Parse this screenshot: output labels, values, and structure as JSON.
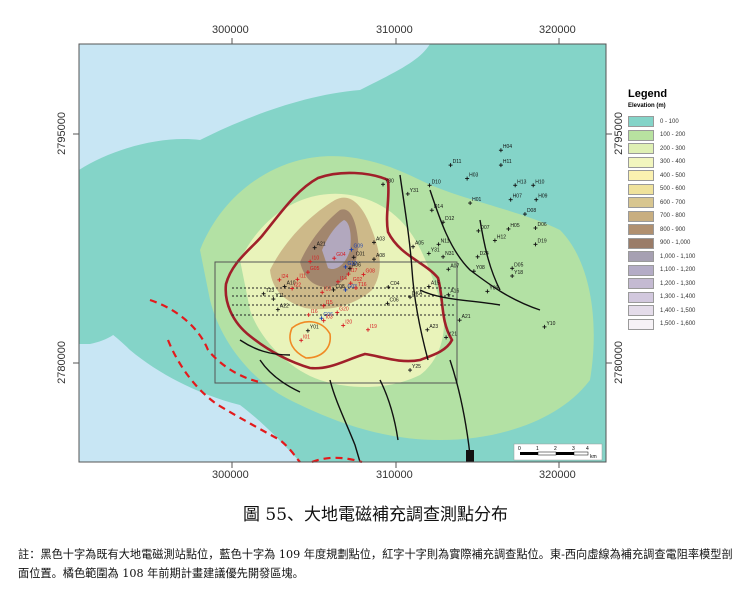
{
  "map": {
    "top_ticks": [
      "300000",
      "310000",
      "320000"
    ],
    "bottom_ticks": [
      "300000",
      "310000",
      "320000"
    ],
    "left_ticks": [
      "2795000",
      "2780000"
    ],
    "right_ticks": [
      "2795000",
      "2780000"
    ],
    "scale_bar": {
      "labels": [
        "0",
        "1",
        "2",
        "3",
        "4"
      ],
      "unit": "km"
    },
    "colors": {
      "sea": "#c8e6f4",
      "frame": "#555555",
      "fault": "#111111",
      "boundary": "#a0202a",
      "dashed": "#e31a1c",
      "priority": "#f08a24",
      "blue_point": "#1a3fb0",
      "red_point": "#d71920"
    }
  },
  "legend": {
    "title": "Legend",
    "subtitle": "Elevation (m)",
    "items": [
      {
        "label": "0 - 100",
        "color": "#84d4c8"
      },
      {
        "label": "100 - 200",
        "color": "#b8e2a0"
      },
      {
        "label": "200 - 300",
        "color": "#dff0b4"
      },
      {
        "label": "300 - 400",
        "color": "#f2f6be"
      },
      {
        "label": "400 - 500",
        "color": "#fbf1b0"
      },
      {
        "label": "500 - 600",
        "color": "#efe29c"
      },
      {
        "label": "600 - 700",
        "color": "#d8c690"
      },
      {
        "label": "700 - 800",
        "color": "#c8ae80"
      },
      {
        "label": "800 - 900",
        "color": "#b09070"
      },
      {
        "label": "900 - 1,000",
        "color": "#9a7c68"
      },
      {
        "label": "1,000 - 1,100",
        "color": "#a6a0b2"
      },
      {
        "label": "1,100 - 1,200",
        "color": "#b4acc6"
      },
      {
        "label": "1,200 - 1,300",
        "color": "#c4bad2"
      },
      {
        "label": "1,300 - 1,400",
        "color": "#d2c8de"
      },
      {
        "label": "1,400 - 1,500",
        "color": "#e4dcea"
      },
      {
        "label": "1,500 - 1,600",
        "color": "#f6f2f6"
      }
    ]
  },
  "points": {
    "black": [
      {
        "label": "D11",
        "x": 0.6,
        "y": 0.344
      },
      {
        "label": "H04",
        "x": 0.667,
        "y": 0.313
      },
      {
        "label": "H11",
        "x": 0.667,
        "y": 0.344
      },
      {
        "label": "H03",
        "x": 0.622,
        "y": 0.372
      },
      {
        "label": "H13",
        "x": 0.686,
        "y": 0.386
      },
      {
        "label": "H10",
        "x": 0.71,
        "y": 0.386
      },
      {
        "label": "D10",
        "x": 0.572,
        "y": 0.386
      },
      {
        "label": "H07",
        "x": 0.68,
        "y": 0.416
      },
      {
        "label": "H09",
        "x": 0.714,
        "y": 0.416
      },
      {
        "label": "H01",
        "x": 0.626,
        "y": 0.423
      },
      {
        "label": "Y31",
        "x": 0.543,
        "y": 0.404
      },
      {
        "label": "D14",
        "x": 0.575,
        "y": 0.438
      },
      {
        "label": "D08",
        "x": 0.699,
        "y": 0.446
      },
      {
        "label": "D12",
        "x": 0.59,
        "y": 0.463
      },
      {
        "label": "D07",
        "x": 0.637,
        "y": 0.481
      },
      {
        "label": "H05",
        "x": 0.677,
        "y": 0.477
      },
      {
        "label": "D19",
        "x": 0.713,
        "y": 0.509
      },
      {
        "label": "D24",
        "x": 0.636,
        "y": 0.535
      },
      {
        "label": "H12",
        "x": 0.659,
        "y": 0.501
      },
      {
        "label": "D06",
        "x": 0.713,
        "y": 0.475
      },
      {
        "label": "N11",
        "x": 0.584,
        "y": 0.509
      },
      {
        "label": "Y31",
        "x": 0.571,
        "y": 0.528
      },
      {
        "label": "N31",
        "x": 0.59,
        "y": 0.535
      },
      {
        "label": "A03",
        "x": 0.498,
        "y": 0.505
      },
      {
        "label": "A05",
        "x": 0.55,
        "y": 0.514
      },
      {
        "label": "A21",
        "x": 0.419,
        "y": 0.516
      },
      {
        "label": "D05",
        "x": 0.682,
        "y": 0.559
      },
      {
        "label": "Y18",
        "x": 0.682,
        "y": 0.575
      },
      {
        "label": "A08",
        "x": 0.498,
        "y": 0.54
      },
      {
        "label": "C01",
        "x": 0.471,
        "y": 0.536
      },
      {
        "label": "A07",
        "x": 0.597,
        "y": 0.561
      },
      {
        "label": "Y08",
        "x": 0.631,
        "y": 0.565
      },
      {
        "label": "A06",
        "x": 0.466,
        "y": 0.559
      },
      {
        "label": "A15",
        "x": 0.571,
        "y": 0.597
      },
      {
        "label": "A16",
        "x": 0.597,
        "y": 0.614
      },
      {
        "label": "DKA",
        "x": 0.546,
        "y": 0.619
      },
      {
        "label": "C04",
        "x": 0.517,
        "y": 0.598
      },
      {
        "label": "C06",
        "x": 0.516,
        "y": 0.632
      },
      {
        "label": "Y09",
        "x": 0.649,
        "y": 0.607
      },
      {
        "label": "A10",
        "x": 0.379,
        "y": 0.597
      },
      {
        "label": "C08",
        "x": 0.444,
        "y": 0.604
      },
      {
        "label": "T23",
        "x": 0.351,
        "y": 0.612
      },
      {
        "label": "A22",
        "x": 0.37,
        "y": 0.645
      },
      {
        "label": "Y11",
        "x": 0.364,
        "y": 0.623
      },
      {
        "label": "A23",
        "x": 0.569,
        "y": 0.687
      },
      {
        "label": "Y21",
        "x": 0.594,
        "y": 0.703
      },
      {
        "label": "A21",
        "x": 0.612,
        "y": 0.667
      },
      {
        "label": "Y10",
        "x": 0.725,
        "y": 0.681
      },
      {
        "label": "Y01",
        "x": 0.41,
        "y": 0.689
      },
      {
        "label": "Y25",
        "x": 0.546,
        "y": 0.771
      },
      {
        "label": "Y30",
        "x": 0.51,
        "y": 0.384
      }
    ],
    "blue": [
      {
        "label": "G09",
        "x": 0.468,
        "y": 0.52
      },
      {
        "label": "G10",
        "x": 0.46,
        "y": 0.556
      },
      {
        "label": "G03",
        "x": 0.46,
        "y": 0.604
      },
      {
        "label": "G06",
        "x": 0.428,
        "y": 0.663
      }
    ],
    "red": [
      {
        "label": "G04",
        "x": 0.445,
        "y": 0.538
      },
      {
        "label": "I10",
        "x": 0.413,
        "y": 0.545
      },
      {
        "label": "G08",
        "x": 0.484,
        "y": 0.572
      },
      {
        "label": "G02",
        "x": 0.467,
        "y": 0.59
      },
      {
        "label": "G05",
        "x": 0.41,
        "y": 0.567
      },
      {
        "label": "I17",
        "x": 0.464,
        "y": 0.571
      },
      {
        "label": "I14",
        "x": 0.45,
        "y": 0.587
      },
      {
        "label": "T16",
        "x": 0.474,
        "y": 0.6
      },
      {
        "label": "I11",
        "x": 0.396,
        "y": 0.582
      },
      {
        "label": "I13",
        "x": 0.429,
        "y": 0.609
      },
      {
        "label": "I15",
        "x": 0.431,
        "y": 0.637
      },
      {
        "label": "G20",
        "x": 0.449,
        "y": 0.651
      },
      {
        "label": "I03",
        "x": 0.431,
        "y": 0.668
      },
      {
        "label": "I20",
        "x": 0.457,
        "y": 0.678
      },
      {
        "label": "I16",
        "x": 0.411,
        "y": 0.656
      },
      {
        "label": "I19",
        "x": 0.49,
        "y": 0.687
      },
      {
        "label": "I01",
        "x": 0.401,
        "y": 0.709
      },
      {
        "label": "I24",
        "x": 0.372,
        "y": 0.583
      },
      {
        "label": "I22",
        "x": 0.389,
        "y": 0.601
      }
    ]
  },
  "caption": "圖 55、大地電磁補充調查測點分布",
  "note": "註：黑色十字為既有大地電磁測站點位，藍色十字為 109 年度規劃點位，紅字十字則為實際補充調查點位。東-西向虛線為補充調查電阻率模型剖面位置。橘色範圍為 108 年前期計畫建議優先開發區塊。"
}
